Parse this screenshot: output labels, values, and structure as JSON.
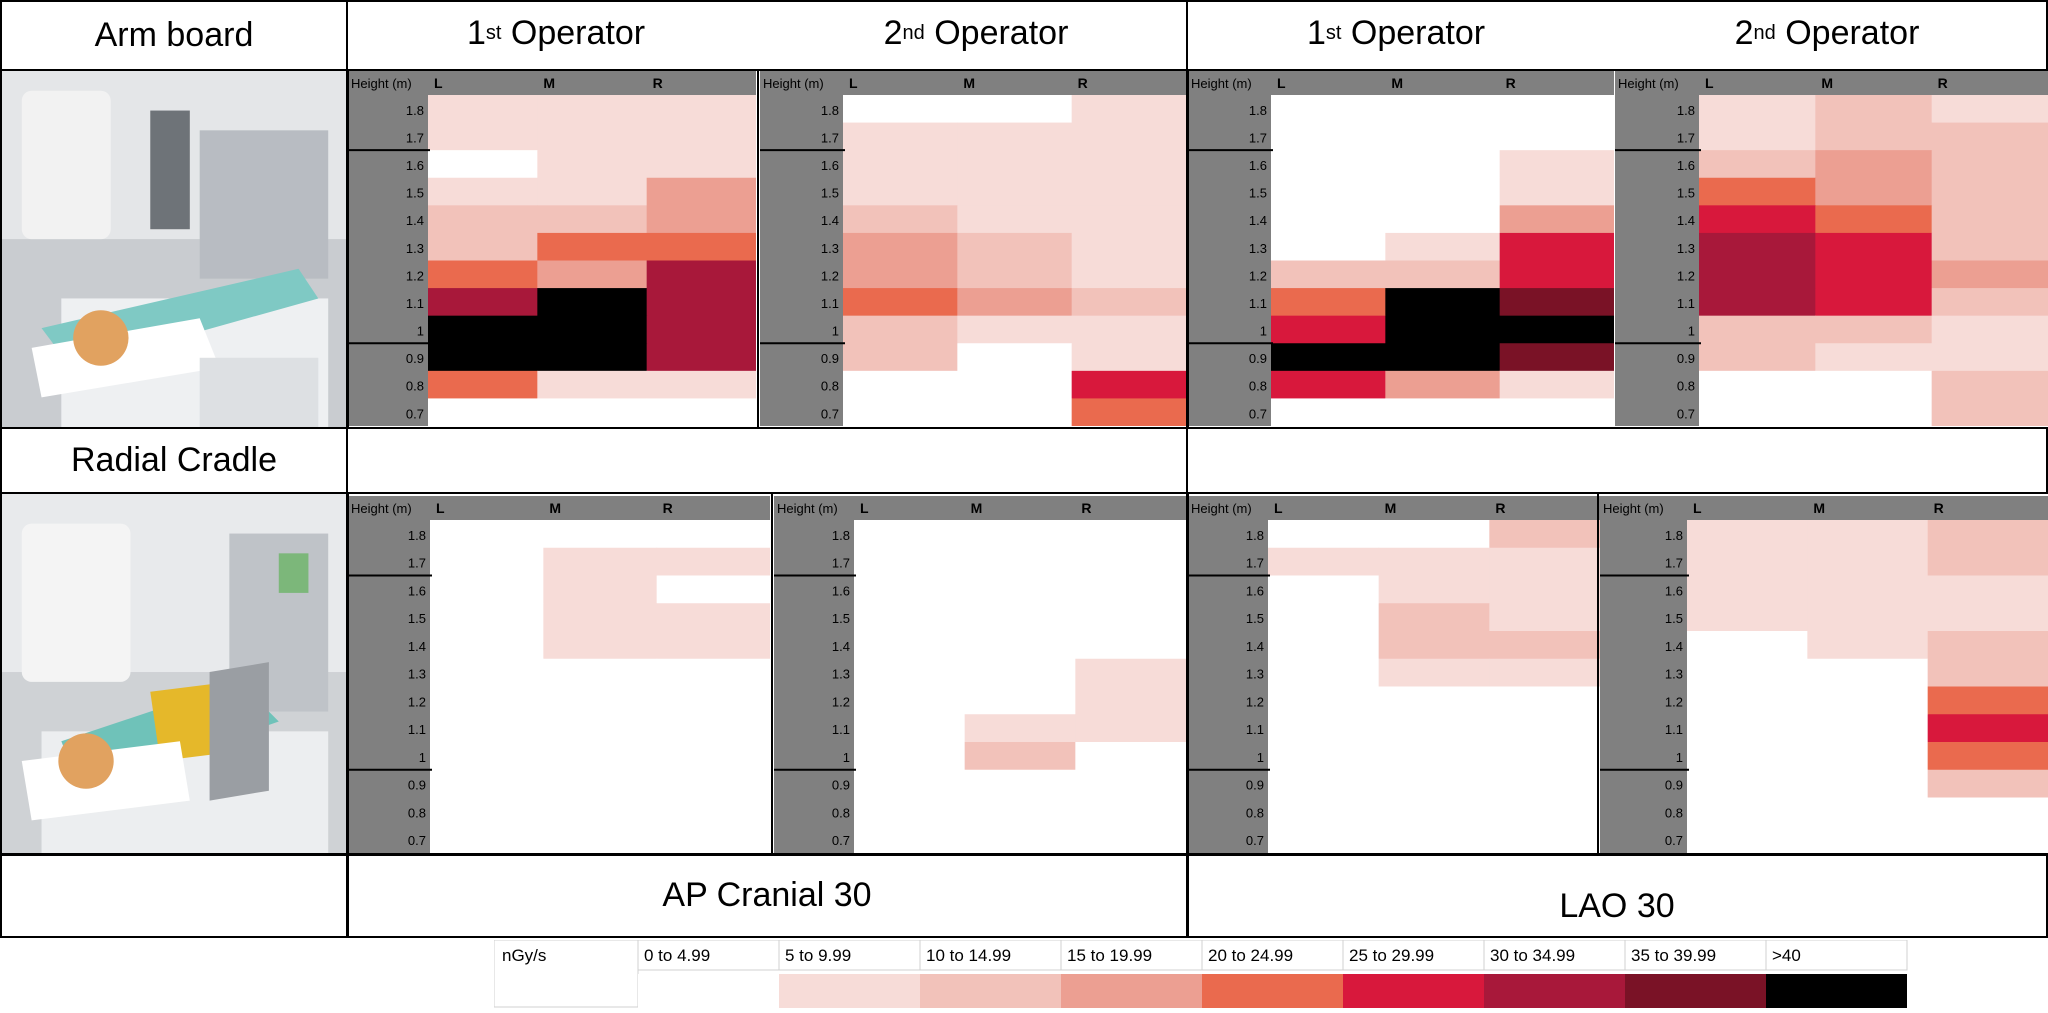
{
  "row_labels": [
    "Arm board",
    "Radial Cradle"
  ],
  "operator_headers": [
    {
      "ordinal": "1",
      "sup": "st",
      "word": "Operator"
    },
    {
      "ordinal": "2",
      "sup": "nd",
      "word": "Operator"
    },
    {
      "ordinal": "1",
      "sup": "st",
      "word": "Operator"
    },
    {
      "ordinal": "2",
      "sup": "nd",
      "word": "Operator"
    }
  ],
  "projection_labels": [
    "AP Cranial 30",
    "LAO 30"
  ],
  "legend": {
    "unit": "nGy/s",
    "bins": [
      {
        "label": "0 to 4.99",
        "color": "#ffffff"
      },
      {
        "label": "5 to 9.99",
        "color": "#f7dcd8"
      },
      {
        "label": "10 to 14.99",
        "color": "#f2c2ba"
      },
      {
        "label": "15 to 19.99",
        "color": "#ec9f92"
      },
      {
        "label": "20 to 24.99",
        "color": "#ea6a4e"
      },
      {
        "label": "25 to 29.99",
        "color": "#d8183c"
      },
      {
        "label": "30 to 34.99",
        "color": "#a8183a"
      },
      {
        "label": "35 to 39.99",
        "color": "#7a1226"
      },
      {
        "label": ">40",
        "color": "#000000"
      }
    ]
  },
  "icons": [
    "arm-board-photo-icon",
    "radial-cradle-photo-icon"
  ],
  "chart_data": {
    "type": "heatmap",
    "value_encoding": "legend bin index 0-8",
    "height_header": "Height (m)",
    "columns": [
      "L",
      "M",
      "R"
    ],
    "rows_y": [
      "1.8",
      "1.7",
      "1.6",
      "1.5",
      "1.4",
      "1.3",
      "1.2",
      "1.1",
      "1",
      "0.9",
      "0.8",
      "0.7"
    ],
    "panels": [
      {
        "support": "Arm board",
        "projection": "AP Cranial 30",
        "operator": "1st Operator",
        "matrix": [
          [
            1,
            1,
            1
          ],
          [
            1,
            1,
            1
          ],
          [
            0,
            1,
            1
          ],
          [
            1,
            1,
            3
          ],
          [
            2,
            2,
            3
          ],
          [
            2,
            4,
            4
          ],
          [
            4,
            3,
            6
          ],
          [
            6,
            8,
            6
          ],
          [
            8,
            8,
            6
          ],
          [
            8,
            8,
            6
          ],
          [
            4,
            1,
            1
          ],
          [
            0,
            0,
            0
          ]
        ]
      },
      {
        "support": "Arm board",
        "projection": "AP Cranial 30",
        "operator": "2nd Operator",
        "matrix": [
          [
            0,
            0,
            1
          ],
          [
            1,
            1,
            1
          ],
          [
            1,
            1,
            1
          ],
          [
            1,
            1,
            1
          ],
          [
            2,
            1,
            1
          ],
          [
            3,
            2,
            1
          ],
          [
            3,
            2,
            1
          ],
          [
            4,
            3,
            2
          ],
          [
            2,
            1,
            1
          ],
          [
            2,
            0,
            1
          ],
          [
            0,
            0,
            5
          ],
          [
            0,
            0,
            4
          ]
        ]
      },
      {
        "support": "Arm board",
        "projection": "LAO 30",
        "operator": "1st Operator",
        "matrix": [
          [
            0,
            0,
            0
          ],
          [
            0,
            0,
            0
          ],
          [
            0,
            0,
            1
          ],
          [
            0,
            0,
            1
          ],
          [
            0,
            0,
            3
          ],
          [
            0,
            1,
            5
          ],
          [
            2,
            2,
            5
          ],
          [
            4,
            8,
            7
          ],
          [
            5,
            8,
            8
          ],
          [
            8,
            8,
            7
          ],
          [
            5,
            3,
            1
          ],
          [
            0,
            0,
            0
          ]
        ]
      },
      {
        "support": "Arm board",
        "projection": "LAO 30",
        "operator": "2nd Operator",
        "matrix": [
          [
            1,
            2,
            1
          ],
          [
            1,
            2,
            2
          ],
          [
            2,
            3,
            2
          ],
          [
            4,
            3,
            2
          ],
          [
            5,
            4,
            2
          ],
          [
            6,
            5,
            2
          ],
          [
            6,
            5,
            3
          ],
          [
            6,
            5,
            2
          ],
          [
            2,
            2,
            1
          ],
          [
            2,
            1,
            1
          ],
          [
            0,
            0,
            2
          ],
          [
            0,
            0,
            2
          ]
        ]
      },
      {
        "support": "Radial Cradle",
        "projection": "AP Cranial 30",
        "operator": "1st Operator",
        "matrix": [
          [
            0,
            0,
            0
          ],
          [
            0,
            1,
            1
          ],
          [
            0,
            1,
            0
          ],
          [
            0,
            1,
            1
          ],
          [
            0,
            1,
            1
          ],
          [
            0,
            0,
            0
          ],
          [
            0,
            0,
            0
          ],
          [
            0,
            0,
            0
          ],
          [
            0,
            0,
            0
          ],
          [
            0,
            0,
            0
          ],
          [
            0,
            0,
            0
          ],
          [
            0,
            0,
            0
          ]
        ]
      },
      {
        "support": "Radial Cradle",
        "projection": "AP Cranial 30",
        "operator": "2nd Operator",
        "matrix": [
          [
            0,
            0,
            0
          ],
          [
            0,
            0,
            0
          ],
          [
            0,
            0,
            0
          ],
          [
            0,
            0,
            0
          ],
          [
            0,
            0,
            0
          ],
          [
            0,
            0,
            1
          ],
          [
            0,
            0,
            1
          ],
          [
            0,
            1,
            1
          ],
          [
            0,
            2,
            0
          ],
          [
            0,
            0,
            0
          ],
          [
            0,
            0,
            0
          ],
          [
            0,
            0,
            0
          ]
        ]
      },
      {
        "support": "Radial Cradle",
        "projection": "LAO 30",
        "operator": "1st Operator",
        "matrix": [
          [
            0,
            0,
            2
          ],
          [
            1,
            1,
            1
          ],
          [
            0,
            1,
            1
          ],
          [
            0,
            2,
            1
          ],
          [
            0,
            2,
            2
          ],
          [
            0,
            1,
            1
          ],
          [
            0,
            0,
            0
          ],
          [
            0,
            0,
            0
          ],
          [
            0,
            0,
            0
          ],
          [
            0,
            0,
            0
          ],
          [
            0,
            0,
            0
          ],
          [
            0,
            0,
            0
          ]
        ]
      },
      {
        "support": "Radial Cradle",
        "projection": "LAO 30",
        "operator": "2nd Operator",
        "matrix": [
          [
            1,
            1,
            2
          ],
          [
            1,
            1,
            2
          ],
          [
            1,
            1,
            1
          ],
          [
            1,
            1,
            1
          ],
          [
            0,
            1,
            2
          ],
          [
            0,
            0,
            2
          ],
          [
            0,
            0,
            4
          ],
          [
            0,
            0,
            5
          ],
          [
            0,
            0,
            4
          ],
          [
            0,
            0,
            2
          ],
          [
            0,
            0,
            0
          ],
          [
            0,
            0,
            0
          ]
        ]
      }
    ]
  }
}
